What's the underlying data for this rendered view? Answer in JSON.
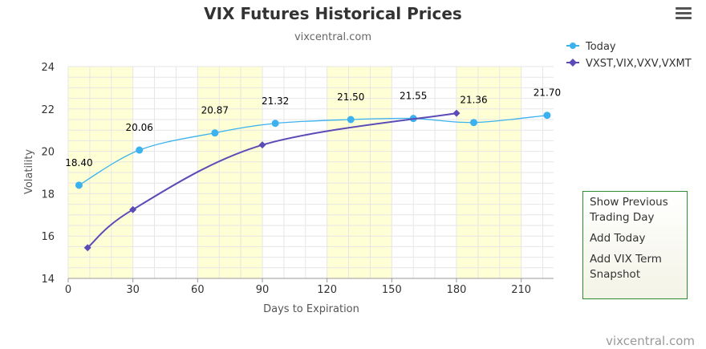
{
  "chart_data": {
    "type": "line",
    "title": "VIX Futures Historical Prices",
    "subtitle": "vixcentral.com",
    "xlabel": "Days to Expiration",
    "ylabel": "Volatility",
    "xlim": [
      0,
      225
    ],
    "ylim": [
      14,
      24
    ],
    "x_ticks": [
      0,
      30,
      60,
      90,
      120,
      150,
      180,
      210
    ],
    "y_ticks": [
      14,
      16,
      18,
      20,
      22,
      24
    ],
    "grid": true,
    "legend_position": "top-right",
    "bands": [
      [
        0,
        30
      ],
      [
        60,
        90
      ],
      [
        120,
        150
      ],
      [
        180,
        210
      ]
    ],
    "series": [
      {
        "name": "Today",
        "color": "#3bb2ee",
        "marker": "circle",
        "x": [
          5,
          33,
          68,
          96,
          131,
          160,
          188,
          222
        ],
        "y": [
          18.4,
          20.06,
          20.87,
          21.32,
          21.5,
          21.55,
          21.36,
          21.7
        ],
        "labels": [
          "18.40",
          "20.06",
          "20.87",
          "21.32",
          "21.50",
          "21.55",
          "21.36",
          "21.70"
        ]
      },
      {
        "name": "VXST,VIX,VXV,VXMT",
        "color": "#5b4bb7",
        "marker": "diamond",
        "x": [
          9,
          30,
          90,
          180
        ],
        "y": [
          15.45,
          17.25,
          20.3,
          21.8
        ],
        "labels": []
      }
    ]
  },
  "menu": {
    "icon": "hamburger-menu-icon"
  },
  "side_panel": {
    "items": [
      "Show Previous Trading Day",
      "Add Today",
      "Add VIX Term Snapshot"
    ]
  },
  "credit": "vixcentral.com"
}
